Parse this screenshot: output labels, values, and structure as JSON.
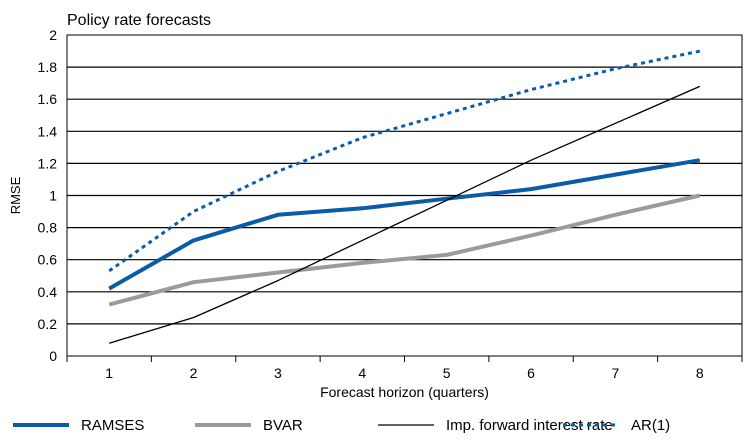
{
  "chart_data": {
    "type": "line",
    "title": "Policy rate forecasts",
    "xlabel": "Forecast horizon (quarters)",
    "ylabel": "RMSE",
    "x": [
      1,
      2,
      3,
      4,
      5,
      6,
      7,
      8
    ],
    "ylim": [
      0,
      2
    ],
    "yticks": [
      "0",
      "0.2",
      "0.4",
      "0.6",
      "0.8",
      "1",
      "1.2",
      "1.4",
      "1.6",
      "1.8",
      "2"
    ],
    "xticks": [
      "1",
      "2",
      "3",
      "4",
      "5",
      "6",
      "7",
      "8"
    ],
    "grid": "horizontal",
    "legend_position": "bottom",
    "series": [
      {
        "name": "RAMSES",
        "color": "#0B5CA6",
        "style": "solid-thick",
        "values": [
          0.42,
          0.72,
          0.88,
          0.92,
          0.98,
          1.04,
          1.13,
          1.22
        ]
      },
      {
        "name": "BVAR",
        "color": "#9B9B9B",
        "style": "solid-thick",
        "values": [
          0.32,
          0.46,
          0.52,
          0.58,
          0.63,
          0.75,
          0.88,
          1.0
        ]
      },
      {
        "name": "Imp. forward interest rate",
        "color": "#000000",
        "style": "solid-thin",
        "values": [
          0.08,
          0.24,
          0.47,
          0.72,
          0.97,
          1.22,
          1.45,
          1.68
        ]
      },
      {
        "name": "AR(1)",
        "color": "#0B5CA6",
        "style": "dotted",
        "values": [
          0.53,
          0.9,
          1.15,
          1.36,
          1.51,
          1.66,
          1.79,
          1.9
        ]
      }
    ]
  }
}
